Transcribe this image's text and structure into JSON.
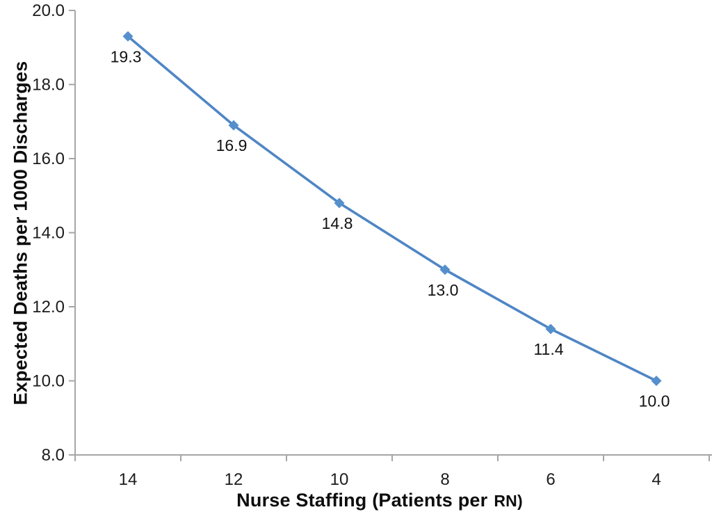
{
  "chart_data": {
    "type": "line",
    "categories": [
      "14",
      "12",
      "10",
      "8",
      "6",
      "4"
    ],
    "series": [
      {
        "name": "Expected deaths per 1000 discharges",
        "values": [
          19.3,
          16.9,
          14.8,
          13.0,
          11.4,
          10.0
        ]
      }
    ],
    "data_labels": [
      "19.3",
      "16.9",
      "14.8",
      "13.0",
      "11.4",
      "10.0"
    ],
    "title": "",
    "xlabel_main": "Nurse Staffing (Patients per",
    "xlabel_suffix": "RN)",
    "ylabel": "Expected Deaths per 1000 Discharges",
    "ylim": [
      8,
      20
    ],
    "ytick_step": 2,
    "ytick_labels": [
      "8.0",
      "10.0",
      "12.0",
      "14.0",
      "16.0",
      "18.0",
      "20.0"
    ],
    "grid": "off",
    "legend_position": "none",
    "marker_shape": "diamond",
    "line_color": "#4f86c5",
    "marker_color": "#5590cc",
    "axis_color": "#a6a6a6",
    "text_color": "#1c1c1c"
  }
}
